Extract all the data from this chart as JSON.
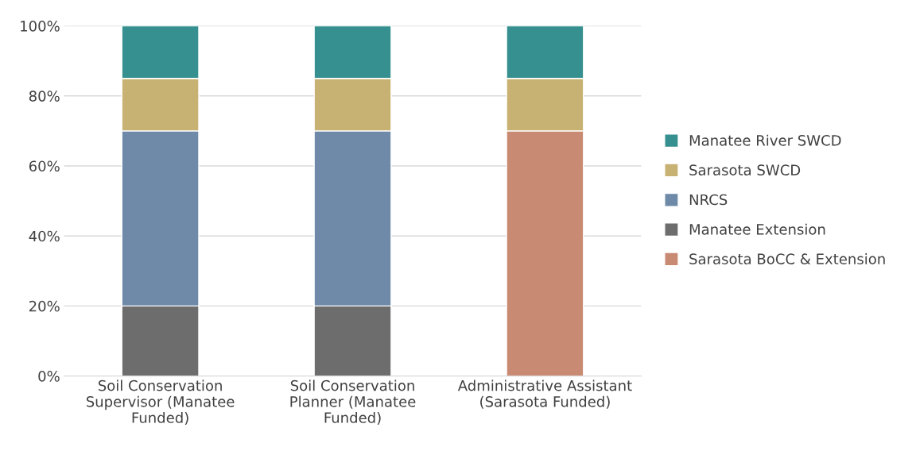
{
  "chart_data": {
    "type": "bar",
    "stacked": true,
    "categories": [
      "Soil Conservation\nSupervisor (Manatee\nFunded)",
      "Soil Conservation\nPlanner (Manatee\nFunded)",
      "Administrative Assistant\n(Sarasota Funded)"
    ],
    "series": [
      {
        "name": "Sarasota BoCC & Extension",
        "color": "#c98a74",
        "values": [
          null,
          null,
          70
        ]
      },
      {
        "name": "Manatee Extension",
        "color": "#6d6d6d",
        "values": [
          20,
          20,
          null
        ]
      },
      {
        "name": "NRCS",
        "color": "#6f8aa8",
        "values": [
          50,
          50,
          null
        ]
      },
      {
        "name": "Sarasota SWCD",
        "color": "#c8b273",
        "values": [
          15,
          15,
          15
        ]
      },
      {
        "name": "Manatee River SWCD",
        "color": "#35908f",
        "values": [
          15,
          15,
          15
        ]
      }
    ],
    "ylim": [
      0,
      100
    ],
    "yticks": [
      {
        "value": 0,
        "label": "0%"
      },
      {
        "value": 20,
        "label": "20%"
      },
      {
        "value": 40,
        "label": "40%"
      },
      {
        "value": 60,
        "label": "60%"
      },
      {
        "value": 80,
        "label": "80%"
      },
      {
        "value": 100,
        "label": "100%"
      }
    ],
    "grid": "y",
    "legend": "right"
  }
}
